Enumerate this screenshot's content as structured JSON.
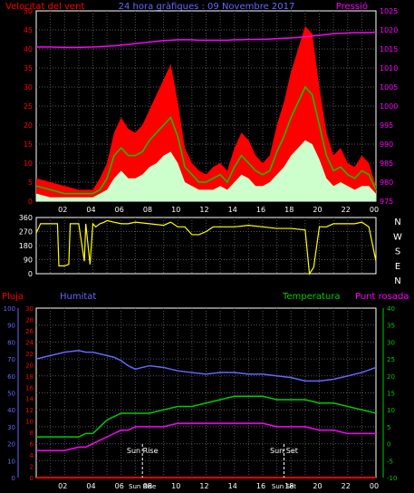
{
  "header": {
    "left_label": "Velocitat del vent",
    "center_title": "24 hora gràfiques : 09 Novembre 2017",
    "right_label": "Pressió"
  },
  "hour_ticks": [
    "02",
    "04",
    "06",
    "08",
    "10",
    "12",
    "14",
    "16",
    "18",
    "20",
    "22",
    "00"
  ],
  "colors": {
    "wind_speed": "#ff0000",
    "wind_avg": "#00cc00",
    "wind_low": "#ccffcc",
    "pressure": "#ff00ff",
    "direction": "#ffff00",
    "rain": "#ff0000",
    "humidity": "#6666ff",
    "temperature": "#00cc00",
    "dewpoint": "#ff00ff",
    "axis_left": "#ff0000",
    "axis_blue": "#6666ff",
    "axis_right": "#00cc00",
    "frame": "#ffffff",
    "grid": "#555555"
  },
  "compass": [
    "N",
    "W",
    "S",
    "E",
    "N"
  ],
  "bottom": {
    "rain_label": "Pluja",
    "humidity_label": "Humitat",
    "temp_label": "Temperatura",
    "dew_label": "Punt rosada",
    "sunrise_label": "Sun Rise",
    "sunset_label": "Sun Set"
  },
  "chart_data": [
    {
      "type": "area",
      "title": "24 hora gràfiques : 09 Novembre 2017",
      "x_unit": "hour",
      "xlim": [
        0,
        24
      ],
      "y_left": {
        "label": "Velocitat del vent",
        "ylim": [
          0,
          50
        ],
        "ticks": [
          0,
          5,
          10,
          15,
          20,
          25,
          30,
          35,
          40,
          45,
          50
        ]
      },
      "y_right": {
        "label": "Pressió",
        "ylim": [
          975,
          1025
        ],
        "ticks": [
          975,
          980,
          985,
          990,
          995,
          1000,
          1005,
          1010,
          1015,
          1020,
          1025
        ]
      },
      "x": [
        0,
        1,
        2,
        3,
        4,
        4.5,
        5,
        5.5,
        6,
        6.5,
        7,
        7.5,
        8,
        8.5,
        9,
        9.5,
        10,
        10.5,
        11,
        11.5,
        12,
        12.5,
        13,
        13.5,
        14,
        14.5,
        15,
        15.5,
        16,
        16.5,
        17,
        17.5,
        18,
        18.5,
        19,
        19.5,
        20,
        20.5,
        21,
        21.5,
        22,
        22.5,
        23,
        23.5,
        24
      ],
      "series": [
        {
          "name": "gust",
          "values": [
            6,
            5,
            4,
            3,
            3,
            6,
            10,
            18,
            22,
            19,
            18,
            20,
            24,
            28,
            32,
            36,
            26,
            14,
            10,
            8,
            7,
            9,
            10,
            8,
            14,
            18,
            16,
            12,
            10,
            12,
            20,
            26,
            34,
            40,
            46,
            44,
            30,
            18,
            12,
            14,
            10,
            9,
            12,
            10,
            4
          ]
        },
        {
          "name": "average",
          "values": [
            4,
            3,
            2,
            2,
            2,
            3,
            6,
            12,
            14,
            12,
            12,
            13,
            16,
            18,
            20,
            22,
            17,
            9,
            7,
            5,
            5,
            6,
            7,
            5,
            9,
            12,
            10,
            8,
            7,
            8,
            13,
            17,
            22,
            26,
            30,
            28,
            20,
            12,
            8,
            9,
            7,
            6,
            8,
            7,
            3
          ]
        },
        {
          "name": "low",
          "values": [
            2,
            1,
            1,
            1,
            1,
            2,
            3,
            6,
            8,
            6,
            6,
            7,
            9,
            10,
            12,
            13,
            10,
            5,
            4,
            3,
            3,
            3,
            4,
            3,
            5,
            7,
            6,
            4,
            4,
            5,
            7,
            9,
            12,
            14,
            16,
            15,
            11,
            6,
            4,
            5,
            4,
            3,
            4,
            4,
            2
          ]
        },
        {
          "name": "pressure",
          "values": [
            1015.5,
            1015.5,
            1015.4,
            1015.4,
            1015.5,
            1015.6,
            1015.7,
            1015.8,
            1016,
            1016.2,
            1016.4,
            1016.6,
            1016.8,
            1017,
            1017.2,
            1017.3,
            1017.4,
            1017.4,
            1017.4,
            1017.3,
            1017.3,
            1017.3,
            1017.3,
            1017.3,
            1017.4,
            1017.4,
            1017.5,
            1017.5,
            1017.5,
            1017.6,
            1017.7,
            1017.8,
            1017.9,
            1018,
            1018.2,
            1018.4,
            1018.6,
            1018.8,
            1019,
            1019.1,
            1019.2,
            1019.3,
            1019.3,
            1019.3,
            1019.4
          ]
        }
      ]
    },
    {
      "type": "line",
      "title": "",
      "x_unit": "hour",
      "ylim": [
        0,
        360
      ],
      "ticks": [
        0,
        90,
        180,
        270,
        360
      ],
      "x": [
        0,
        0.3,
        0.6,
        1,
        1.5,
        1.6,
        2,
        2.3,
        2.4,
        3,
        3.4,
        3.5,
        3.8,
        4,
        4.2,
        4.5,
        4.8,
        5,
        5.5,
        6,
        6.5,
        7,
        8,
        9,
        9.5,
        10,
        10.5,
        11,
        11.5,
        12,
        12.5,
        13,
        14,
        15,
        16,
        17,
        18,
        19,
        19.3,
        19.6,
        20,
        20.5,
        21,
        21.5,
        22,
        22.5,
        23,
        23.5,
        24
      ],
      "series": [
        {
          "name": "direction",
          "values": [
            260,
            320,
            320,
            320,
            320,
            50,
            50,
            60,
            320,
            320,
            80,
            320,
            60,
            320,
            300,
            320,
            330,
            340,
            330,
            320,
            320,
            330,
            320,
            310,
            330,
            300,
            300,
            250,
            250,
            270,
            300,
            300,
            300,
            310,
            300,
            290,
            290,
            280,
            0,
            40,
            300,
            300,
            320,
            320,
            320,
            320,
            330,
            300,
            80
          ]
        }
      ]
    },
    {
      "type": "line",
      "title": "",
      "x_unit": "hour",
      "y_rain": {
        "label": "Pluja",
        "ylim": [
          0,
          30
        ],
        "ticks": [
          0,
          2,
          4,
          6,
          8,
          10,
          12,
          14,
          16,
          18,
          20,
          22,
          24,
          26,
          28,
          30
        ]
      },
      "y_hum": {
        "label": "Humitat",
        "ylim": [
          0,
          100
        ],
        "ticks": [
          0,
          10,
          20,
          30,
          40,
          50,
          60,
          70,
          80,
          90,
          100
        ]
      },
      "y_temp": {
        "label": "Temperatura",
        "ylim": [
          -10,
          40
        ],
        "ticks": [
          -10,
          -5,
          0,
          5,
          10,
          15,
          20,
          25,
          30,
          35,
          40
        ]
      },
      "x": [
        0,
        1,
        2,
        3,
        3.5,
        4,
        4.5,
        5,
        5.5,
        6,
        6.5,
        7,
        8,
        9,
        10,
        11,
        12,
        13,
        14,
        15,
        16,
        17,
        18,
        19,
        20,
        21,
        22,
        23,
        24
      ],
      "series": [
        {
          "name": "rain",
          "axis": "rain",
          "values": [
            0,
            0,
            0,
            0,
            0,
            0,
            0,
            0,
            0,
            0,
            0,
            0,
            0,
            0,
            0,
            0,
            0,
            0,
            0,
            0,
            0,
            0,
            0,
            0,
            0,
            0,
            0,
            0,
            0
          ]
        },
        {
          "name": "humidity",
          "axis": "hum",
          "values": [
            70,
            72,
            74,
            75,
            74,
            74,
            73,
            72,
            71,
            69,
            66,
            64,
            66,
            65,
            63,
            62,
            61,
            62,
            62,
            61,
            61,
            60,
            59,
            57,
            57,
            58,
            60,
            62,
            65
          ]
        },
        {
          "name": "temperature",
          "axis": "temp",
          "values": [
            2,
            2,
            2,
            2,
            3,
            3,
            5,
            7,
            8,
            9,
            9,
            9,
            9,
            10,
            11,
            11,
            12,
            13,
            14,
            14,
            14,
            13,
            13,
            13,
            12,
            12,
            11,
            10,
            9
          ]
        },
        {
          "name": "dewpoint",
          "axis": "temp",
          "values": [
            -2,
            -2,
            -2,
            -1,
            -1,
            0,
            1,
            2,
            3,
            4,
            4,
            5,
            5,
            5,
            6,
            6,
            6,
            6,
            6,
            6,
            6,
            5,
            5,
            5,
            4,
            4,
            3,
            3,
            3
          ]
        }
      ],
      "annotations": [
        "Sun Rise",
        "Sun Set"
      ]
    }
  ]
}
